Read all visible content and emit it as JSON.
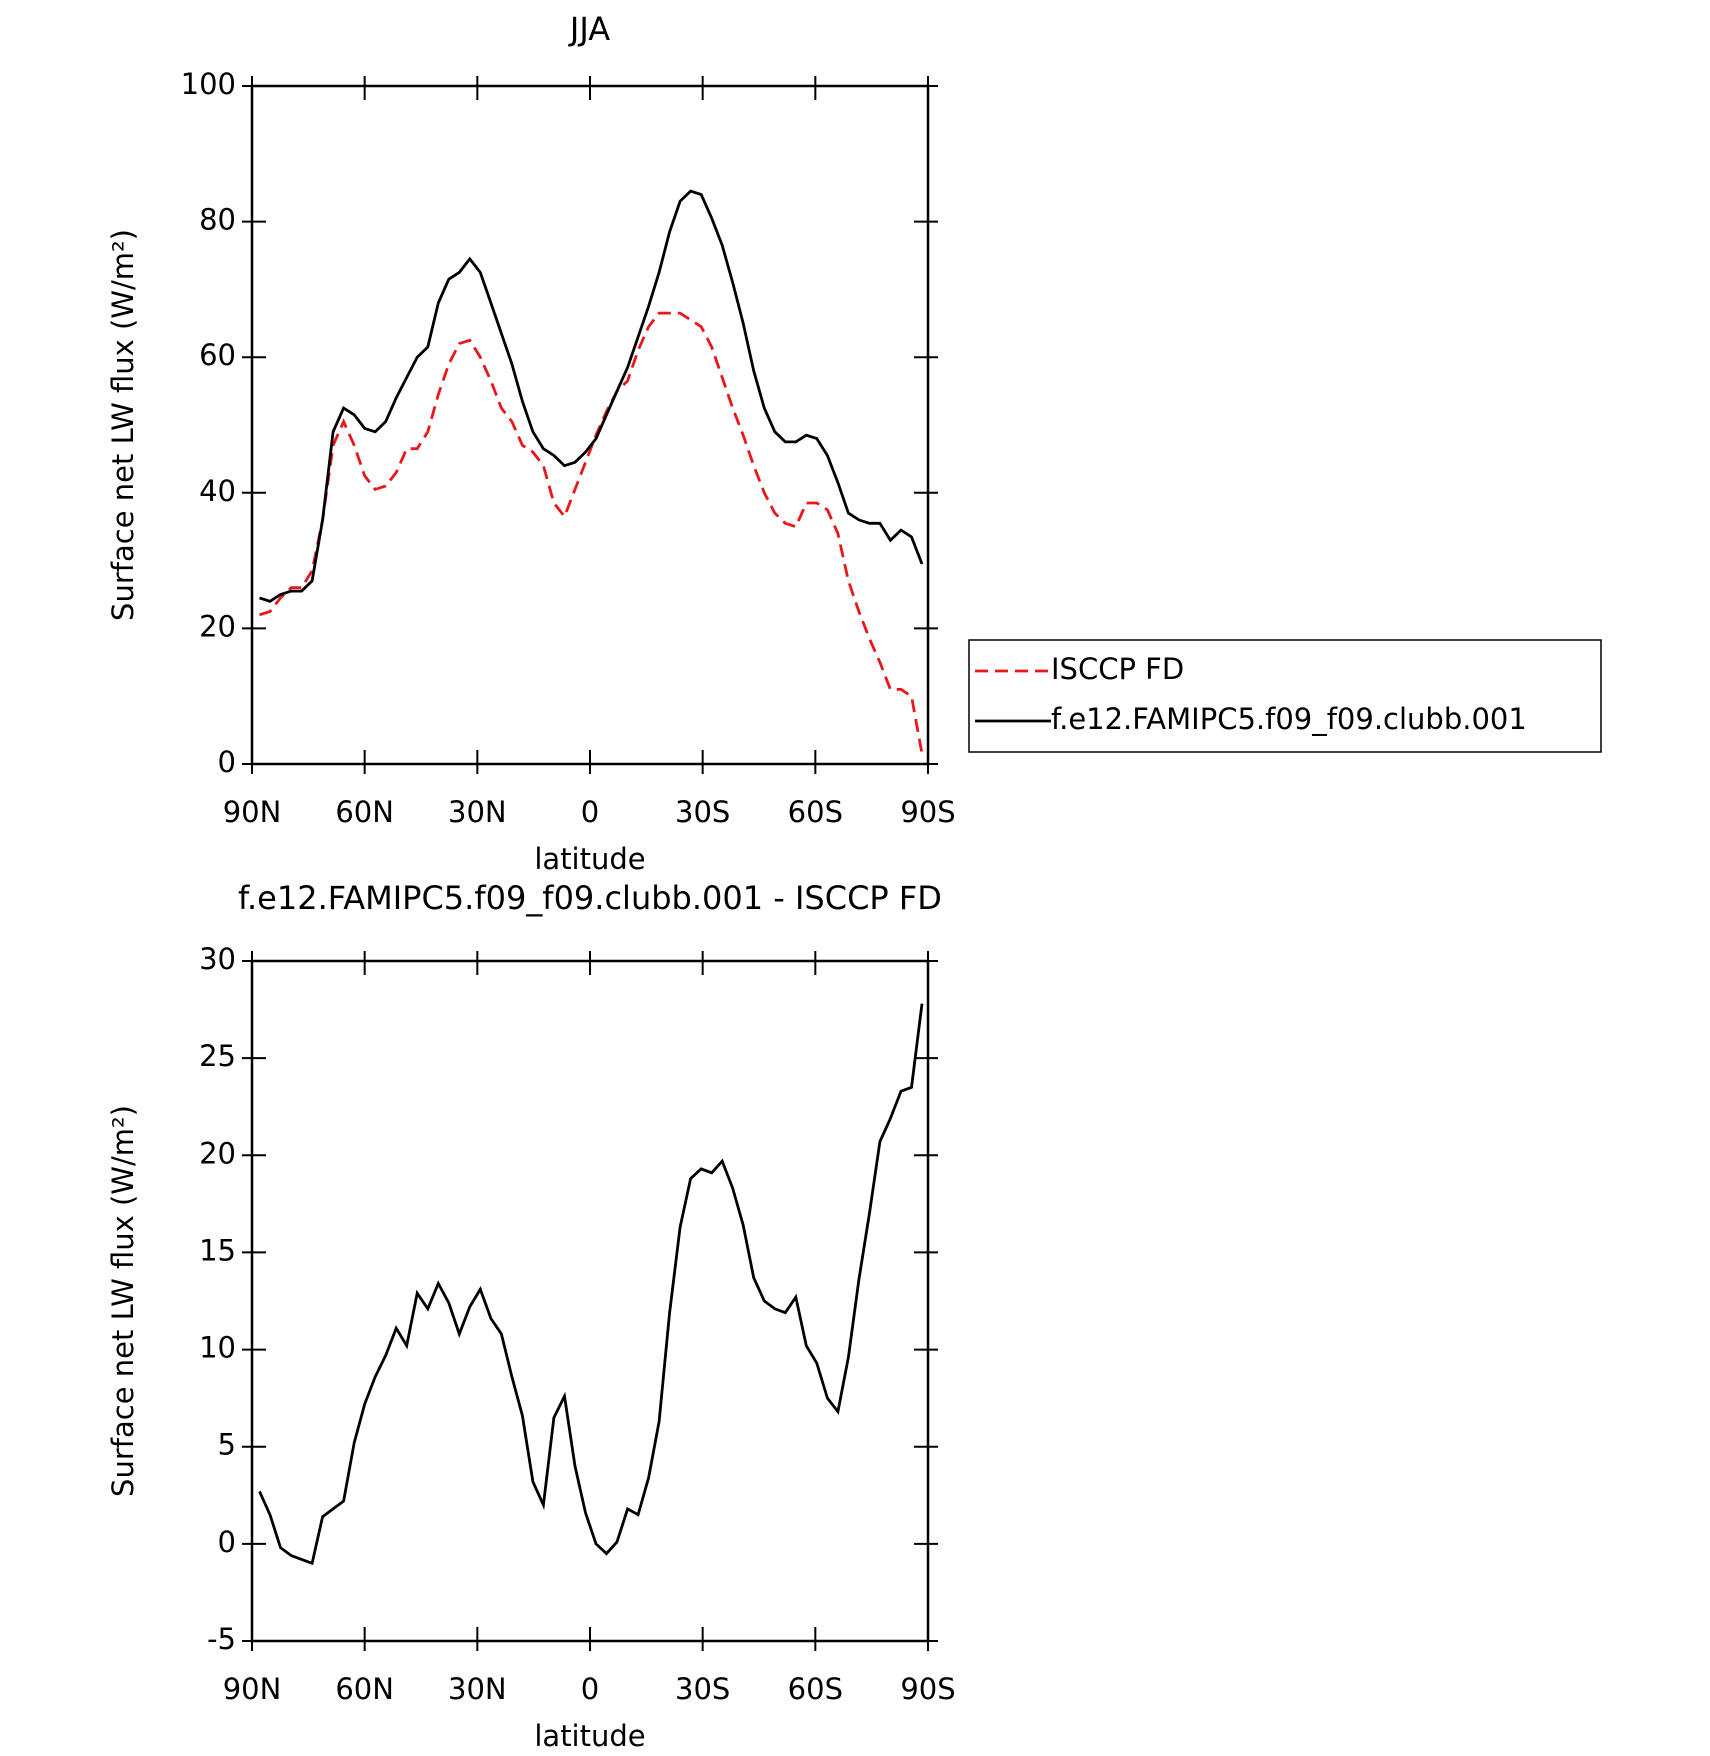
{
  "chart_data": [
    {
      "type": "line",
      "title": "JJA",
      "xlabel": "latitude",
      "ylabel": "Surface net LW flux (W/m²)",
      "x": [
        88,
        85.2,
        82.4,
        79.6,
        76.8,
        74,
        71.2,
        68.4,
        65.6,
        62.8,
        60,
        57.2,
        54.4,
        51.6,
        48.8,
        46,
        43.2,
        40.4,
        37.6,
        34.8,
        32,
        29.2,
        26.4,
        23.6,
        20.8,
        18,
        15.2,
        12.4,
        9.6,
        6.8,
        4,
        1.2,
        -1.6,
        -4.4,
        -7.2,
        -10,
        -12.8,
        -15.6,
        -18.4,
        -21.2,
        -24,
        -26.8,
        -29.6,
        -32.4,
        -35.2,
        -38,
        -40.8,
        -43.6,
        -46.4,
        -49.2,
        -52,
        -54.8,
        -57.6,
        -60.4,
        -63.2,
        -66,
        -68.8,
        -71.6,
        -74.4,
        -77.2,
        -80,
        -82.8,
        -85.6,
        -88.4
      ],
      "xlim": [
        90,
        -90
      ],
      "xticks": [
        {
          "value": 90,
          "label": "90N"
        },
        {
          "value": 60,
          "label": "60N"
        },
        {
          "value": 30,
          "label": "30N"
        },
        0,
        {
          "value": -30,
          "label": "30S"
        },
        {
          "value": -60,
          "label": "60S"
        },
        {
          "value": -90,
          "label": "90S"
        }
      ],
      "ylim": [
        0,
        100
      ],
      "yticks": [
        0,
        20,
        40,
        60,
        80,
        100
      ],
      "series": [
        {
          "name": "ISCCP FD",
          "color": "#e8181a",
          "style": "dashed",
          "values": [
            22,
            22.5,
            24.5,
            26,
            26,
            28.5,
            36,
            47,
            50.5,
            47,
            42.5,
            40.5,
            41,
            43,
            46.5,
            46.5,
            49,
            54.5,
            59,
            62,
            62.5,
            60,
            56.5,
            52.5,
            50.5,
            47,
            46,
            44,
            38.5,
            36.5,
            40.5,
            44.5,
            48.5,
            52,
            55,
            56.5,
            61,
            64.5,
            66.5,
            66.5,
            66.5,
            65.5,
            64.5,
            61.5,
            57,
            52.5,
            48.5,
            44,
            40,
            37,
            35.5,
            35,
            38.5,
            38.5,
            37.5,
            34,
            27,
            22.5,
            18.5,
            15,
            11,
            11,
            10,
            1.5
          ]
        },
        {
          "name": "f.e12.FAMIPC5.f09_f09.clubb.001",
          "color": "#000000",
          "style": "solid",
          "values": [
            24.5,
            24,
            25,
            25.5,
            25.5,
            27,
            36,
            49,
            52.5,
            51.5,
            49.5,
            49,
            50.5,
            54,
            57,
            60,
            61.5,
            68,
            71.5,
            72.5,
            74.5,
            72.5,
            68,
            63.5,
            59,
            53.5,
            49,
            46.5,
            45.5,
            44,
            44.5,
            46,
            48,
            51.5,
            55,
            58.5,
            63,
            67.5,
            72.5,
            78.5,
            83,
            84.5,
            84,
            80.5,
            76.5,
            71,
            65,
            58,
            52.5,
            49,
            47.5,
            47.5,
            48.5,
            48,
            45.5,
            41.5,
            37,
            36,
            35.5,
            35.5,
            33,
            34.5,
            33.5,
            29.5
          ]
        }
      ]
    },
    {
      "type": "line",
      "title": "f.e12.FAMIPC5.f09_f09.clubb.001 - ISCCP FD",
      "xlabel": "latitude",
      "ylabel": "Surface net LW flux (W/m²)",
      "x": [
        88,
        85.2,
        82.4,
        79.6,
        76.8,
        74,
        71.2,
        68.4,
        65.6,
        62.8,
        60,
        57.2,
        54.4,
        51.6,
        48.8,
        46,
        43.2,
        40.4,
        37.6,
        34.8,
        32,
        29.2,
        26.4,
        23.6,
        20.8,
        18,
        15.2,
        12.4,
        9.6,
        6.8,
        4,
        1.2,
        -1.6,
        -4.4,
        -7.2,
        -10,
        -12.8,
        -15.6,
        -18.4,
        -21.2,
        -24,
        -26.8,
        -29.6,
        -32.4,
        -35.2,
        -38,
        -40.8,
        -43.6,
        -46.4,
        -49.2,
        -52,
        -54.8,
        -57.6,
        -60.4,
        -63.2,
        -66,
        -68.8,
        -71.6,
        -74.4,
        -77.2,
        -80,
        -82.8,
        -85.6,
        -88.4
      ],
      "xlim": [
        90,
        -90
      ],
      "xticks": [
        {
          "value": 90,
          "label": "90N"
        },
        {
          "value": 60,
          "label": "60N"
        },
        {
          "value": 30,
          "label": "30N"
        },
        0,
        {
          "value": -30,
          "label": "30S"
        },
        {
          "value": -60,
          "label": "60S"
        },
        {
          "value": -90,
          "label": "90S"
        }
      ],
      "ylim": [
        -5,
        30
      ],
      "yticks": [
        -5,
        0,
        5,
        10,
        15,
        20,
        25,
        30
      ],
      "series": [
        {
          "color": "#000000",
          "style": "solid",
          "values": [
            2.7,
            1.5,
            -0.2,
            -0.6,
            -0.8,
            -1,
            1.4,
            1.8,
            2.2,
            5.2,
            7.2,
            8.6,
            9.7,
            11.1,
            10.2,
            12.9,
            12.1,
            13.4,
            12.4,
            10.8,
            12.2,
            13.1,
            11.6,
            10.8,
            8.6,
            6.6,
            3.2,
            2,
            6.5,
            7.6,
            4,
            1.6,
            0,
            -0.5,
            0.1,
            1.8,
            1.5,
            3.4,
            6.3,
            11.9,
            16.3,
            18.8,
            19.3,
            19.1,
            19.7,
            18.3,
            16.4,
            13.7,
            12.5,
            12.1,
            11.9,
            12.7,
            10.2,
            9.3,
            7.5,
            6.8,
            9.6,
            13.6,
            17,
            20.7,
            21.9,
            23.3,
            23.5,
            27.8
          ]
        }
      ]
    }
  ]
}
